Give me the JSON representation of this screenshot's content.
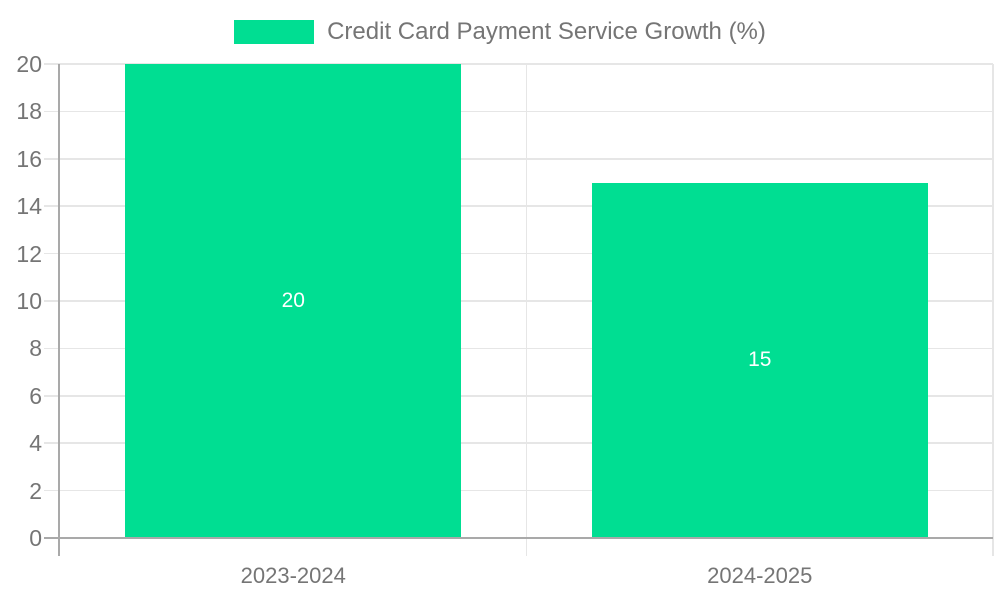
{
  "legend": {
    "label": "Credit Card Payment Service Growth (%)"
  },
  "chart_data": {
    "type": "bar",
    "title": "Credit Card Payment Service Growth (%)",
    "categories": [
      "2023-2024",
      "2024-2025"
    ],
    "values": [
      20,
      15
    ],
    "data_labels": [
      "20",
      "15"
    ],
    "xlabel": "",
    "ylabel": "",
    "ylim": [
      0,
      20
    ],
    "ytick_step": 2,
    "yticks": [
      "0",
      "2",
      "4",
      "6",
      "8",
      "10",
      "12",
      "14",
      "16",
      "18",
      "20"
    ],
    "grid": true,
    "legend_position": "top-center",
    "colors": {
      "bar": "#00de92",
      "gridline": "#e6e6e6",
      "axis_line": "#a9a9a9",
      "tick_label": "#757575",
      "data_label": "#ffffff"
    }
  }
}
